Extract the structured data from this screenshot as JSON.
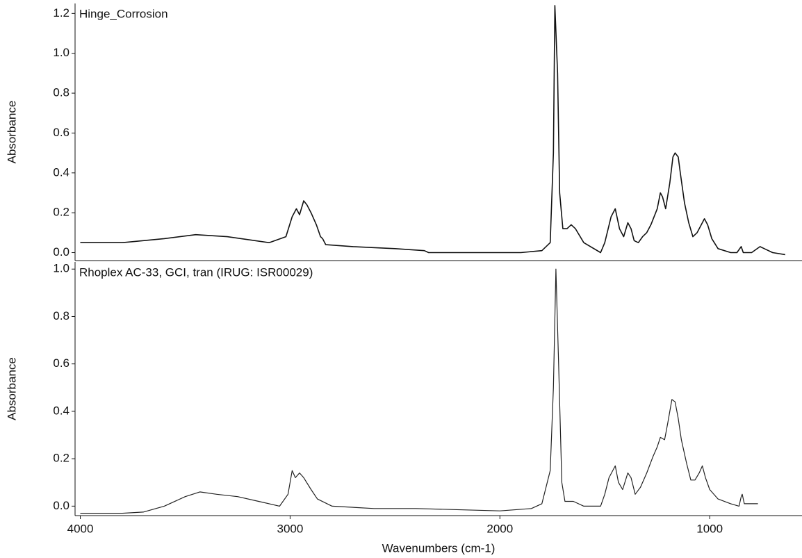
{
  "chart_data": [
    {
      "type": "line",
      "title": "Hinge_Corrosion",
      "y_label": "Absorbance",
      "xlim": [
        4025,
        560
      ],
      "ylim": [
        -0.04,
        1.25
      ],
      "yticks": [
        {
          "value": 0,
          "label": "0.0"
        },
        0.2,
        0.4,
        0.6,
        0.8,
        {
          "value": 1,
          "label": "1.0"
        },
        1.2
      ],
      "x": [
        4000,
        3800,
        3600,
        3450,
        3300,
        3100,
        3020,
        2990,
        2970,
        2955,
        2935,
        2920,
        2900,
        2875,
        2855,
        2845,
        2830,
        2700,
        2500,
        2360,
        2340,
        2200,
        2000,
        1900,
        1800,
        1760,
        1745,
        1738,
        1725,
        1715,
        1700,
        1680,
        1660,
        1640,
        1600,
        1520,
        1500,
        1470,
        1450,
        1430,
        1410,
        1390,
        1375,
        1360,
        1340,
        1320,
        1300,
        1280,
        1250,
        1235,
        1225,
        1210,
        1190,
        1175,
        1165,
        1150,
        1140,
        1120,
        1100,
        1080,
        1060,
        1040,
        1025,
        1010,
        990,
        960,
        900,
        870,
        850,
        840,
        800,
        760,
        740,
        700,
        640
      ],
      "series": [
        {
          "color": "#111111",
          "values": [
            0.05,
            0.05,
            0.07,
            0.09,
            0.08,
            0.05,
            0.08,
            0.18,
            0.22,
            0.19,
            0.26,
            0.24,
            0.2,
            0.14,
            0.08,
            0.07,
            0.04,
            0.03,
            0.02,
            0.01,
            0,
            0,
            0,
            0,
            0.01,
            0.05,
            0.5,
            1.24,
            0.9,
            0.3,
            0.12,
            0.12,
            0.14,
            0.12,
            0.05,
            0,
            0.05,
            0.18,
            0.22,
            0.12,
            0.08,
            0.15,
            0.12,
            0.06,
            0.05,
            0.08,
            0.1,
            0.14,
            0.22,
            0.3,
            0.28,
            0.22,
            0.35,
            0.48,
            0.5,
            0.48,
            0.4,
            0.25,
            0.15,
            0.08,
            0.1,
            0.14,
            0.17,
            0.14,
            0.07,
            0.02,
            0,
            0,
            0.03,
            0,
            0,
            0.03,
            0.02,
            0,
            -0.01
          ]
        }
      ]
    },
    {
      "type": "line",
      "title": "Rhoplex AC-33, GCI, tran (IRUG: ISR00029)",
      "y_label": "Absorbance",
      "x_label": "Wavenumbers (cm-1)",
      "xlim": [
        4025,
        560
      ],
      "ylim": [
        -0.04,
        1.03
      ],
      "xticks": [
        4000,
        3000,
        2000,
        1000
      ],
      "yticks": [
        {
          "value": 0,
          "label": "0.0"
        },
        0.2,
        0.4,
        0.6,
        0.8,
        {
          "value": 1,
          "label": "1.0"
        }
      ],
      "x": [
        4000,
        3800,
        3700,
        3600,
        3500,
        3430,
        3350,
        3250,
        3150,
        3050,
        3010,
        2990,
        2975,
        2955,
        2935,
        2900,
        2870,
        2800,
        2600,
        2400,
        2000,
        1850,
        1800,
        1780,
        1760,
        1745,
        1733,
        1720,
        1705,
        1690,
        1650,
        1600,
        1520,
        1500,
        1480,
        1450,
        1435,
        1415,
        1390,
        1375,
        1355,
        1330,
        1300,
        1270,
        1250,
        1235,
        1215,
        1200,
        1180,
        1165,
        1150,
        1135,
        1110,
        1090,
        1070,
        1050,
        1035,
        1020,
        1000,
        960,
        900,
        860,
        850,
        845,
        835,
        800,
        770
      ],
      "series": [
        {
          "color": "#222222",
          "values": [
            -0.03,
            -0.03,
            -0.025,
            0,
            0.04,
            0.06,
            0.05,
            0.04,
            0.02,
            0,
            0.05,
            0.15,
            0.12,
            0.14,
            0.12,
            0.07,
            0.03,
            0,
            -0.01,
            -0.01,
            -0.02,
            -0.01,
            0.01,
            0.08,
            0.15,
            0.5,
            1.0,
            0.6,
            0.1,
            0.02,
            0.02,
            0,
            0,
            0.05,
            0.12,
            0.17,
            0.1,
            0.07,
            0.14,
            0.12,
            0.05,
            0.08,
            0.14,
            0.21,
            0.25,
            0.29,
            0.28,
            0.35,
            0.45,
            0.44,
            0.37,
            0.28,
            0.18,
            0.11,
            0.11,
            0.14,
            0.17,
            0.12,
            0.07,
            0.03,
            0.01,
            0,
            0.04,
            0.05,
            0.01,
            0.01,
            0.01
          ]
        }
      ]
    }
  ]
}
